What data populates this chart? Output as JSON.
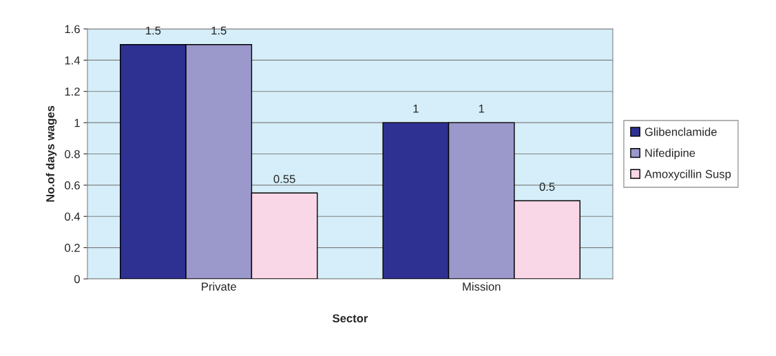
{
  "chart_data": {
    "type": "bar",
    "xlabel": "Sector",
    "ylabel": "No.of days wages",
    "categories": [
      "Private",
      "Mission"
    ],
    "series": [
      {
        "name": "Glibenclamide",
        "color": "#2e3192",
        "values": [
          1.5,
          1
        ]
      },
      {
        "name": "Nifedipine",
        "color": "#9b98cb",
        "values": [
          1.5,
          1
        ]
      },
      {
        "name": "Amoxycillin Susp",
        "color": "#fad7e6",
        "values": [
          0.55,
          0.5
        ]
      }
    ],
    "ylim": [
      0,
      1.6
    ],
    "yticks": [
      0,
      0.2,
      0.4,
      0.6,
      0.8,
      1,
      1.2,
      1.4,
      1.6
    ],
    "grid": "y",
    "legend": "right",
    "data_labels": true
  }
}
